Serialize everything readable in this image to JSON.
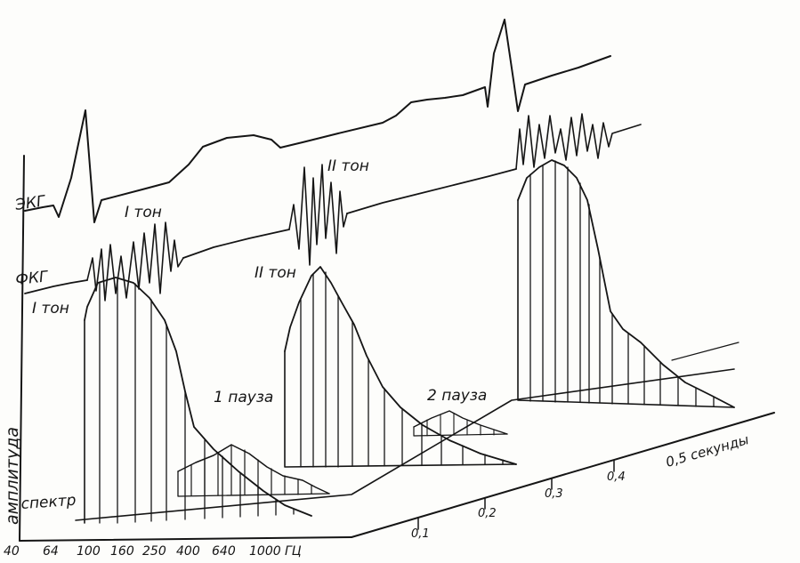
{
  "traces": {
    "ekg_label": "ЭКГ",
    "fkg_label": "ФКГ"
  },
  "annotations": {
    "tone1_upper": "I тон",
    "tone1_left": "I тон",
    "tone2_upper": "II тон",
    "tone2_mid": "II тон",
    "pause1": "1 пауза",
    "pause2": "2 пауза",
    "spectrum": "спектр"
  },
  "axes": {
    "amplitude_label": "амплитуда",
    "time_label": "0,5 секунды",
    "time_ticks": [
      "0,1",
      "0,2",
      "0,3",
      "0,4"
    ],
    "frequency_ticks": [
      "40",
      "64",
      "100",
      "160",
      "250",
      "400",
      "640",
      "1000",
      "ГЦ"
    ]
  }
}
